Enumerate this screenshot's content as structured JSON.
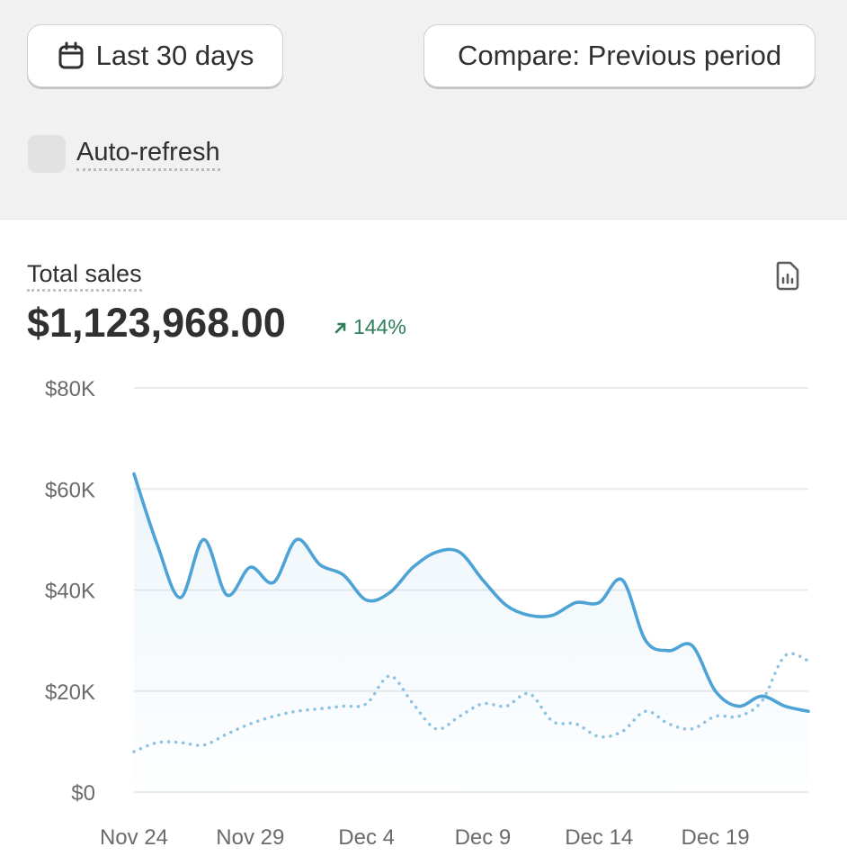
{
  "toolbar": {
    "date_range_label": "Last 30 days",
    "compare_label": "Compare: Previous period",
    "auto_refresh_label": "Auto-refresh",
    "auto_refresh_checked": false
  },
  "card": {
    "title": "Total sales",
    "total": "$1,123,968.00",
    "change": "144%",
    "change_direction": "up",
    "change_color": "#2e7d5b"
  },
  "colors": {
    "current_series": "#4da3d6",
    "previous_series": "#8cc3e3",
    "grid": "#ebebeb"
  },
  "icons": {
    "date_range": "calendar-icon",
    "report": "report-icon",
    "change": "arrow-up-right-icon"
  },
  "chart_data": {
    "type": "line",
    "title": "",
    "xlabel": "",
    "ylabel": "",
    "ylim": [
      0,
      80000
    ],
    "y_ticks": [
      0,
      20000,
      40000,
      60000,
      80000
    ],
    "y_tick_labels": [
      "$0",
      "$20K",
      "$40K",
      "$60K",
      "$80K"
    ],
    "x_ticks": [
      "Nov 24",
      "Nov 29",
      "Dec 4",
      "Dec 9",
      "Dec 14",
      "Dec 19"
    ],
    "x_tick_indices": [
      0,
      5,
      10,
      15,
      20,
      25
    ],
    "grid": true,
    "categories": [
      "Nov 24",
      "Nov 25",
      "Nov 26",
      "Nov 27",
      "Nov 28",
      "Nov 29",
      "Nov 30",
      "Dec 1",
      "Dec 2",
      "Dec 3",
      "Dec 4",
      "Dec 5",
      "Dec 6",
      "Dec 7",
      "Dec 8",
      "Dec 9",
      "Dec 10",
      "Dec 11",
      "Dec 12",
      "Dec 13",
      "Dec 14",
      "Dec 15",
      "Dec 16",
      "Dec 17",
      "Dec 18",
      "Dec 19",
      "Dec 20",
      "Dec 21",
      "Dec 22",
      "Dec 23"
    ],
    "series": [
      {
        "style": "solid",
        "values": [
          63000,
          49000,
          38500,
          50000,
          39000,
          44500,
          41500,
          50000,
          45000,
          43000,
          38000,
          39500,
          44500,
          47500,
          47500,
          42000,
          37000,
          35000,
          35000,
          37500,
          37500,
          42000,
          30000,
          28000,
          29000,
          20000,
          17000,
          19000,
          17000,
          16000
        ]
      },
      {
        "style": "dotted",
        "values": [
          8000,
          9800,
          9800,
          9300,
          11500,
          13500,
          15000,
          16000,
          16500,
          17000,
          17500,
          23000,
          17500,
          12500,
          15000,
          17500,
          17000,
          19500,
          14000,
          13500,
          11000,
          12000,
          16000,
          13500,
          12500,
          15000,
          15000,
          18000,
          27000,
          26000
        ]
      }
    ]
  }
}
